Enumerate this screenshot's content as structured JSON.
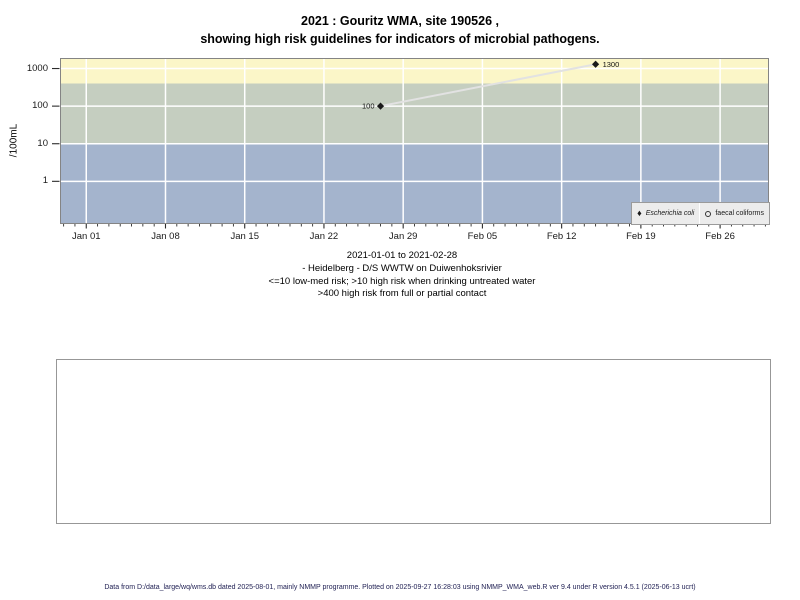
{
  "chart_data": {
    "type": "scatter",
    "title": "2021 : Gouritz WMA, site 190526 ,",
    "title_line2": "showing high risk guidelines for indicators of microbial pathogens.",
    "ylabel": "/100mL",
    "y_scale": "log10",
    "ylog10_range": [
      -1.135,
      3.28
    ],
    "y_ticks": [
      {
        "value": 1,
        "label": "1"
      },
      {
        "value": 10,
        "label": "10"
      },
      {
        "value": 100,
        "label": "100"
      },
      {
        "value": 1000,
        "label": "1000"
      }
    ],
    "x_range_days": [
      -2.32,
      60.32
    ],
    "x_ticks": [
      {
        "label": "Jan 01",
        "day": 0
      },
      {
        "label": "Jan 08",
        "day": 7
      },
      {
        "label": "Jan 15",
        "day": 14
      },
      {
        "label": "Jan 22",
        "day": 21
      },
      {
        "label": "Jan 29",
        "day": 28
      },
      {
        "label": "Feb 05",
        "day": 35
      },
      {
        "label": "Feb 12",
        "day": 42
      },
      {
        "label": "Feb 19",
        "day": 49
      },
      {
        "label": "Feb 26",
        "day": 56
      }
    ],
    "minor_tick_every_days": 1,
    "grid": true,
    "grid_color": "#ffffff",
    "panel_border_color": "#848484",
    "bands": [
      {
        "name": "high risk from full or partial contact (>400)",
        "min": 400,
        "max": null,
        "color": "#FBF6C8"
      },
      {
        "name": "high risk when drinking untreated water (10-400)",
        "min": 10,
        "max": 400,
        "color": "#C5CEC0"
      },
      {
        "name": "low-med risk (<=10)",
        "min": null,
        "max": 10,
        "color": "#A4B4CD"
      }
    ],
    "series": [
      {
        "name": "Escherichia coli",
        "marker": "filled-diamond",
        "color": "#1a1a1a",
        "connector_color": "#E2E2E2",
        "points": [
          {
            "date": "2021-01-27",
            "day": 26,
            "value": 100,
            "label": "100",
            "label_side": "left"
          },
          {
            "date": "2021-02-15",
            "day": 45,
            "value": 1300,
            "label": "1300",
            "label_side": "right"
          }
        ]
      },
      {
        "name": "faecal coliforms",
        "marker": "open-circle",
        "color": "#1a1a1a",
        "points": []
      }
    ],
    "legend_position": "inside-bottom-right"
  },
  "legend": {
    "items": [
      {
        "symbol": "filled-diamond",
        "label": "Escherichia coli",
        "italic": true
      },
      {
        "symbol": "open-circle",
        "label": "faecal coliforms",
        "italic": false
      }
    ]
  },
  "caption": {
    "line1": "2021-01-01 to 2021-02-28",
    "line2": "- Heidelberg - D/S WWTW on Duiwenhoksrivier",
    "line3": "<=10 low-med risk; >10 high risk when drinking untreated water",
    "line4": ">400 high risk from full or partial contact"
  },
  "footer": {
    "text": "Data from D:/data_large/wq/wms.db dated 2025-08-01, mainly NMMP programme. Plotted on 2025-09-27 16:28:03 using NMMP_WMA_web.R ver 9.4 under R version 4.5.1 (2025-06-13 ucrt)"
  }
}
